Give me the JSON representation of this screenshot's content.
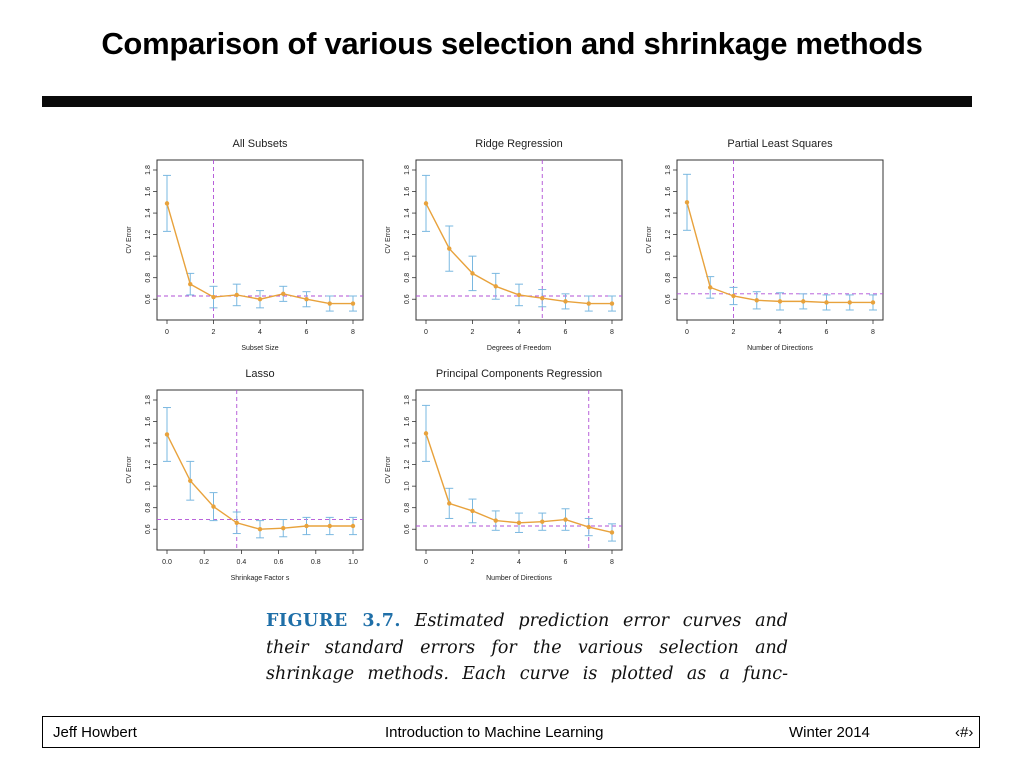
{
  "slide": {
    "title": "Comparison of various selection and shrinkage methods",
    "caption": {
      "label": "FIGURE 3.7.",
      "lines": [
        "Estimated prediction error curves and",
        "their standard errors for the various selection and",
        "shrinkage methods. Each curve is plotted as a func-"
      ]
    },
    "footer": {
      "author": "Jeff Howbert",
      "course": "Introduction to Machine Learning",
      "term": "Winter 2014",
      "page": "‹#›"
    }
  },
  "colors": {
    "curve": "#e8a23c",
    "errorbar": "#7ab8e0",
    "reference": "#b04fd6",
    "frame": "#333333"
  },
  "chart_data": [
    {
      "type": "line",
      "title": "All Subsets",
      "xlabel": "Subset Size",
      "ylabel": "CV Error",
      "xlim": [
        0,
        8
      ],
      "ylim": [
        0.5,
        1.8
      ],
      "xticks": [
        "0",
        "2",
        "4",
        "6",
        "8"
      ],
      "yticks": [
        "0.6",
        "0.8",
        "1.0",
        "1.2",
        "1.4",
        "1.6",
        "1.8"
      ],
      "x": [
        0,
        1,
        2,
        3,
        4,
        5,
        6,
        7,
        8
      ],
      "y": [
        1.49,
        0.74,
        0.62,
        0.64,
        0.6,
        0.65,
        0.6,
        0.56,
        0.56
      ],
      "error": [
        0.26,
        0.1,
        0.1,
        0.1,
        0.08,
        0.07,
        0.07,
        0.07,
        0.07
      ],
      "selected_x": 2,
      "reference_y": 0.63
    },
    {
      "type": "line",
      "title": "Ridge Regression",
      "xlabel": "Degrees of Freedom",
      "ylabel": "CV Error",
      "xlim": [
        0,
        8
      ],
      "ylim": [
        0.5,
        1.8
      ],
      "xticks": [
        "0",
        "2",
        "4",
        "6",
        "8"
      ],
      "yticks": [
        "0.6",
        "0.8",
        "1.0",
        "1.2",
        "1.4",
        "1.6",
        "1.8"
      ],
      "x": [
        0,
        1,
        2,
        3,
        4,
        5,
        6,
        7,
        8
      ],
      "y": [
        1.49,
        1.07,
        0.84,
        0.72,
        0.64,
        0.61,
        0.58,
        0.56,
        0.56
      ],
      "error": [
        0.26,
        0.21,
        0.16,
        0.12,
        0.1,
        0.08,
        0.07,
        0.07,
        0.07
      ],
      "selected_x": 5,
      "reference_y": 0.63
    },
    {
      "type": "line",
      "title": "Partial Least Squares",
      "xlabel": "Number of  Directions",
      "ylabel": "CV Error",
      "xlim": [
        0,
        8
      ],
      "ylim": [
        0.5,
        1.8
      ],
      "xticks": [
        "0",
        "2",
        "4",
        "6",
        "8"
      ],
      "yticks": [
        "0.6",
        "0.8",
        "1.0",
        "1.2",
        "1.4",
        "1.6",
        "1.8"
      ],
      "x": [
        0,
        1,
        2,
        3,
        4,
        5,
        6,
        7,
        8
      ],
      "y": [
        1.5,
        0.71,
        0.63,
        0.59,
        0.58,
        0.58,
        0.57,
        0.57,
        0.57
      ],
      "error": [
        0.26,
        0.1,
        0.08,
        0.08,
        0.08,
        0.07,
        0.07,
        0.07,
        0.07
      ],
      "selected_x": 2,
      "reference_y": 0.65
    },
    {
      "type": "line",
      "title": "Lasso",
      "xlabel": "Shrinkage Factor s",
      "ylabel": "CV Error",
      "xlim": [
        0,
        1
      ],
      "ylim": [
        0.5,
        1.8
      ],
      "xticks": [
        "0.0",
        "0.2",
        "0.4",
        "0.6",
        "0.8",
        "1.0"
      ],
      "xtick_values": [
        0,
        0.2,
        0.4,
        0.6,
        0.8,
        1.0
      ],
      "yticks": [
        "0.6",
        "0.8",
        "1.0",
        "1.2",
        "1.4",
        "1.6",
        "1.8"
      ],
      "x": [
        0,
        0.125,
        0.25,
        0.375,
        0.5,
        0.625,
        0.75,
        0.875,
        1.0
      ],
      "y": [
        1.48,
        1.05,
        0.81,
        0.66,
        0.6,
        0.61,
        0.63,
        0.63,
        0.63
      ],
      "error": [
        0.25,
        0.18,
        0.13,
        0.1,
        0.08,
        0.08,
        0.08,
        0.08,
        0.08
      ],
      "selected_x": 0.375,
      "reference_y": 0.69
    },
    {
      "type": "line",
      "title": "Principal Components Regression",
      "xlabel": "Number of Directions",
      "ylabel": "CV Error",
      "xlim": [
        0,
        8
      ],
      "ylim": [
        0.5,
        1.8
      ],
      "xticks": [
        "0",
        "2",
        "4",
        "6",
        "8"
      ],
      "yticks": [
        "0.6",
        "0.8",
        "1.0",
        "1.2",
        "1.4",
        "1.6",
        "1.8"
      ],
      "x": [
        0,
        1,
        2,
        3,
        4,
        5,
        6,
        7,
        8
      ],
      "y": [
        1.49,
        0.84,
        0.77,
        0.68,
        0.66,
        0.67,
        0.69,
        0.62,
        0.57
      ],
      "error": [
        0.26,
        0.14,
        0.11,
        0.09,
        0.09,
        0.08,
        0.1,
        0.08,
        0.08
      ],
      "selected_x": 7,
      "reference_y": 0.63
    }
  ]
}
